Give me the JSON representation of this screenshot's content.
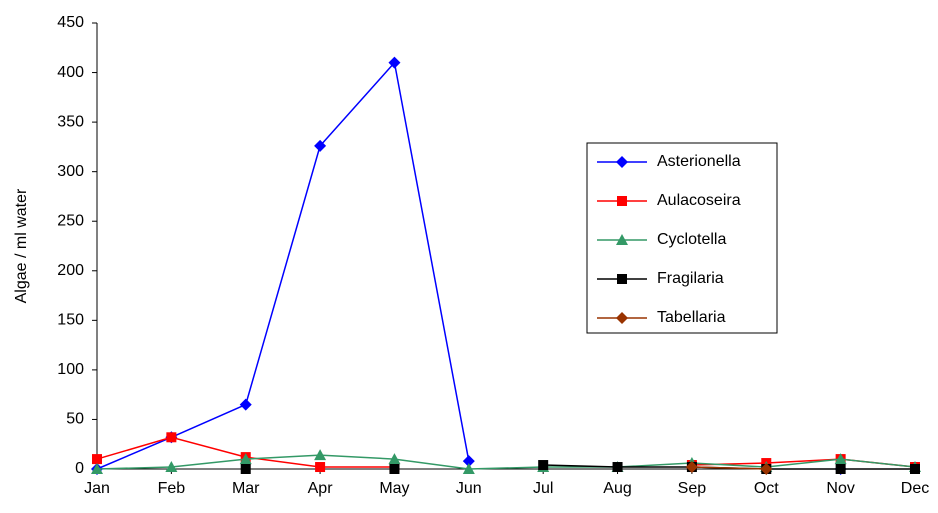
{
  "chart_data": {
    "type": "line",
    "y_label": "Algae / ml water",
    "categories": [
      "Jan",
      "Feb",
      "Mar",
      "Apr",
      "May",
      "Jun",
      "Jul",
      "Aug",
      "Sep",
      "Oct",
      "Nov",
      "Dec"
    ],
    "series": [
      {
        "name": "Asterionella",
        "color": "#0000ff",
        "marker": "diamond",
        "values": [
          0,
          32,
          65,
          326,
          410,
          8,
          null,
          null,
          null,
          null,
          0,
          null
        ]
      },
      {
        "name": "Aulacoseira",
        "color": "#ff0000",
        "marker": "square",
        "values": [
          10,
          32,
          12,
          2,
          2,
          null,
          null,
          null,
          4,
          6,
          10,
          2
        ]
      },
      {
        "name": "Cyclotella",
        "color": "#339966",
        "marker": "triangle",
        "values": [
          0,
          2,
          10,
          14,
          10,
          0,
          2,
          2,
          6,
          2,
          10,
          2
        ]
      },
      {
        "name": "Fragilaria",
        "color": "#000000",
        "marker": "square",
        "values": [
          null,
          null,
          0,
          null,
          0,
          null,
          4,
          2,
          2,
          0,
          0,
          0
        ]
      },
      {
        "name": "Tabellaria",
        "color": "#993300",
        "marker": "diamond",
        "values": [
          null,
          null,
          null,
          null,
          null,
          null,
          null,
          null,
          2,
          0,
          null,
          null
        ]
      }
    ],
    "ylim": [
      0,
      450
    ],
    "yticks": [
      0,
      50,
      100,
      150,
      200,
      250,
      300,
      350,
      400,
      450
    ]
  }
}
